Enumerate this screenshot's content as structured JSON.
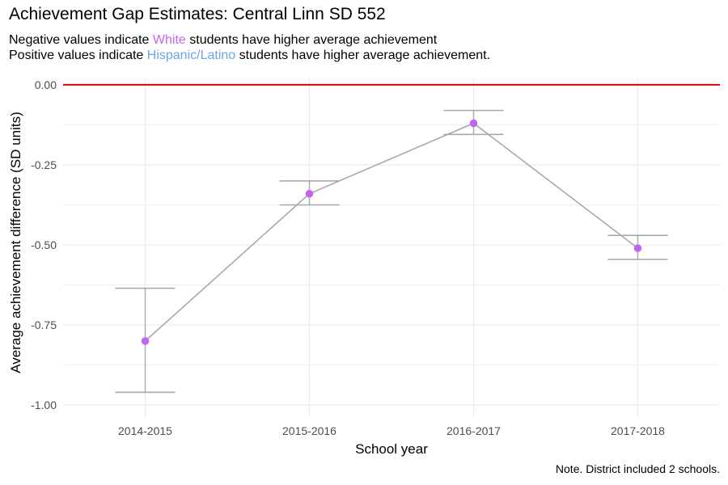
{
  "chart_data": {
    "type": "line",
    "title": "Achievement Gap Estimates: Central Linn SD 552",
    "subtitle_lines": [
      {
        "before": "Negative values indicate ",
        "group": "White",
        "after": " students have higher average achievement"
      },
      {
        "before": "Positive values indicate ",
        "group": "Hispanic/Latino",
        "after": " students have higher average achievement."
      }
    ],
    "xlabel": "School year",
    "ylabel": "Average achievement difference (SD units)",
    "caption": "Note. District included 2 schools.",
    "categories": [
      "2014-2015",
      "2015-2016",
      "2016-2017",
      "2017-2018"
    ],
    "values": [
      -0.8,
      -0.34,
      -0.12,
      -0.51
    ],
    "error_low": [
      -0.96,
      -0.375,
      -0.155,
      -0.545
    ],
    "error_high": [
      -0.635,
      -0.3,
      -0.08,
      -0.47
    ],
    "ylim": [
      -1.04,
      0.02
    ],
    "yticks": [
      0,
      -0.25,
      -0.5,
      -0.75,
      -1
    ],
    "ytick_labels": [
      "0.00",
      "-0.25",
      "-0.50",
      "-0.75",
      "-1.00"
    ],
    "reference_line": 0,
    "grid": true,
    "colors": {
      "point": "#c266f0",
      "line": "#a9a9a9",
      "reference": "#e00000",
      "white_group": "#c266f0",
      "hispanic_group": "#6aa6e6",
      "grid": "#ebebeb"
    }
  }
}
